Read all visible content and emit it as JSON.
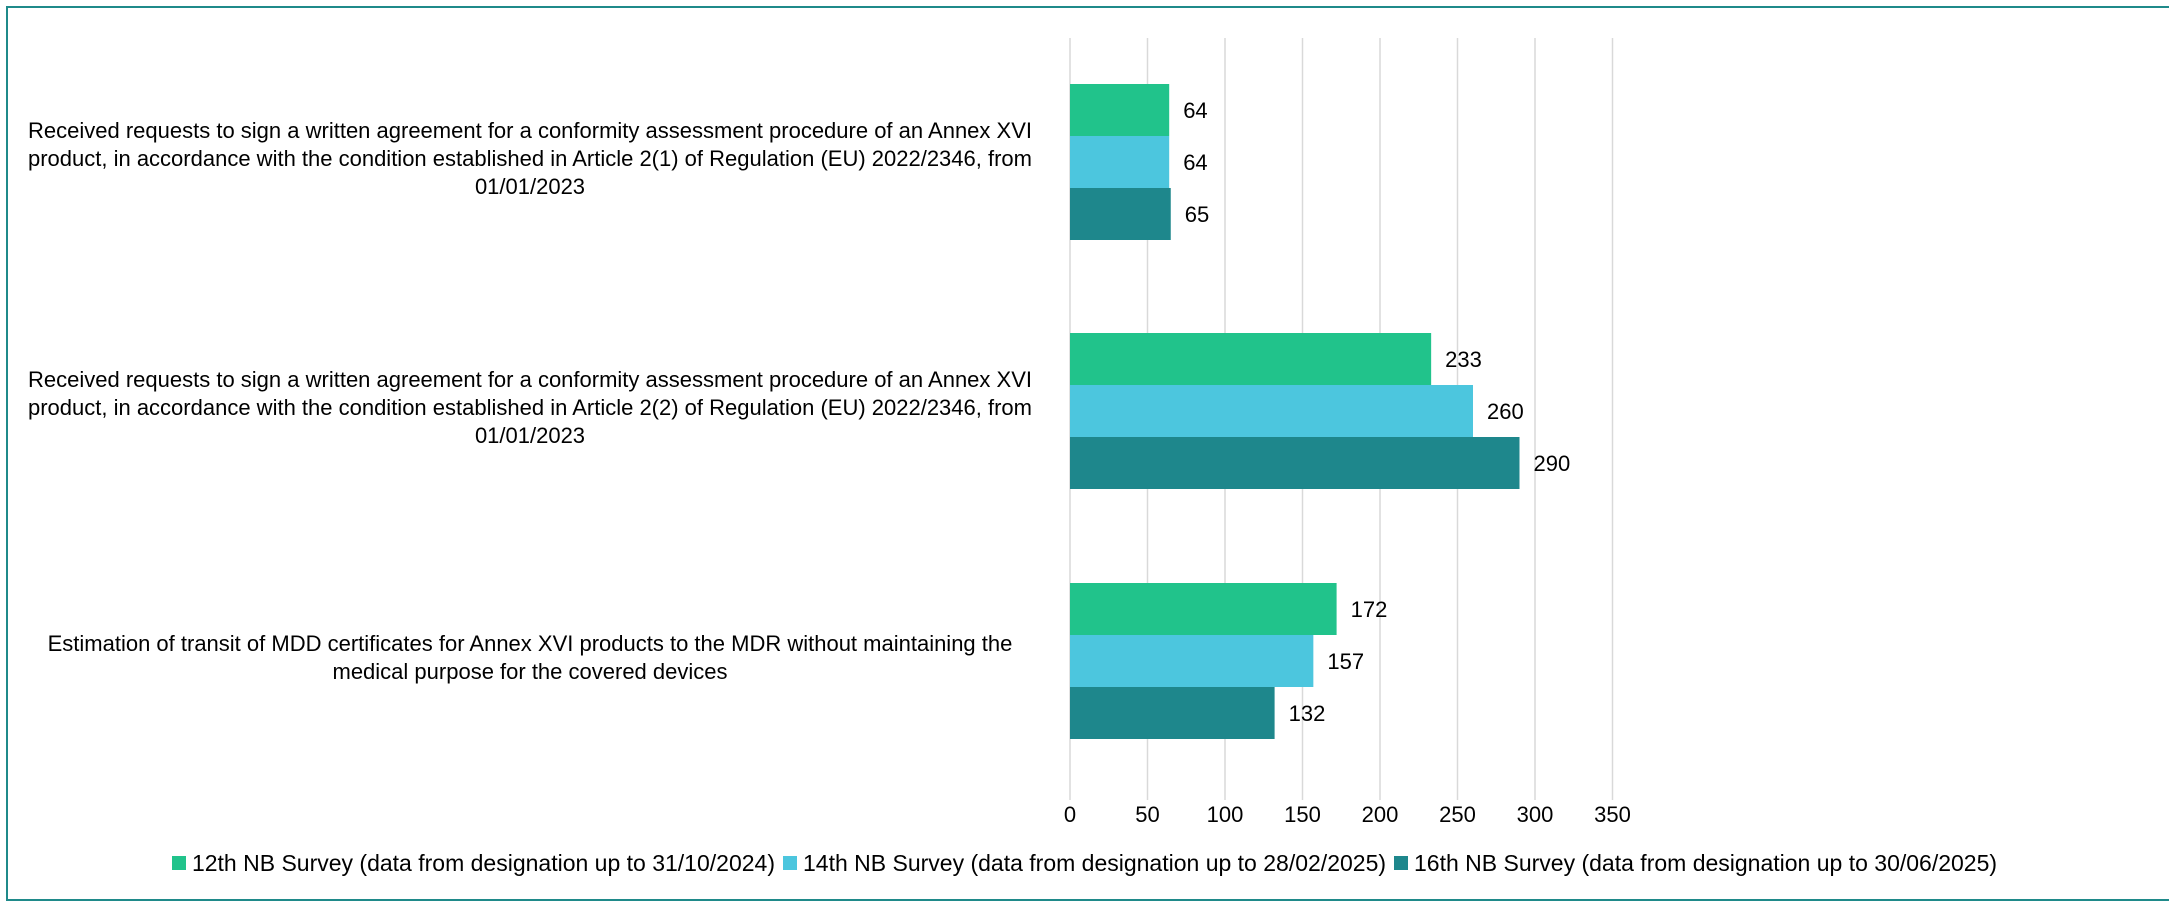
{
  "chart_data": {
    "type": "bar",
    "orientation": "horizontal",
    "categories": [
      "Received requests to sign a written agreement for a conformity assessment procedure of an Annex XVI product, in accordance with the condition established in Article 2(1) of Regulation (EU) 2022/2346, from 01/01/2023",
      "Received requests to sign a written agreement for a conformity assessment procedure of an Annex XVI product, in accordance with the condition established in Article 2(2) of Regulation (EU) 2022/2346, from 01/01/2023",
      "Estimation of transit of MDD certificates for Annex XVI products to the MDR without maintaining the medical purpose for the covered devices"
    ],
    "series": [
      {
        "name": "12th NB Survey (data from designation up to 31/10/2024)",
        "color": "#21c38b",
        "values": [
          64,
          233,
          172
        ]
      },
      {
        "name": "14th NB Survey (data from designation up to 28/02/2025)",
        "color": "#4cc6de",
        "values": [
          64,
          260,
          157
        ]
      },
      {
        "name": "16th NB Survey (data from designation up to 30/06/2025)",
        "color": "#1e878c",
        "values": [
          65,
          290,
          132
        ]
      }
    ],
    "xlim": [
      0,
      350
    ],
    "xticks": [
      0,
      50,
      100,
      150,
      200,
      250,
      300,
      350
    ],
    "grid": true,
    "legend_position": "bottom",
    "data_labels": true
  }
}
